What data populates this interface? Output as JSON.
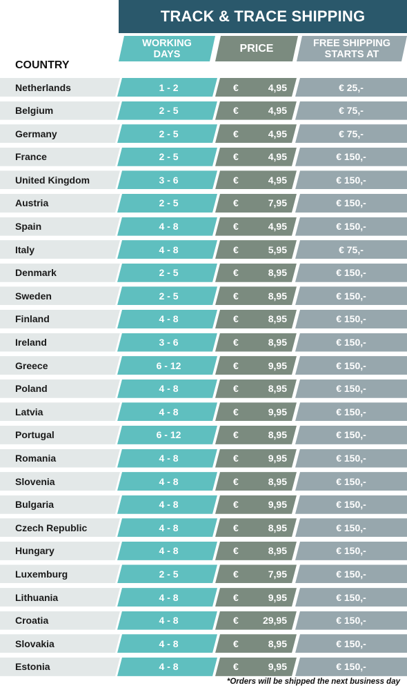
{
  "title": "TRACK & TRACE SHIPPING",
  "headers": {
    "country": "COUNTRY",
    "working_days": "WORKING DAYS",
    "price": "PRICE",
    "free_shipping": "FREE SHIPPING STARTS AT"
  },
  "currency_symbol": "€",
  "colors": {
    "title_bar": "#2a586b",
    "working_days": "#5fbfbf",
    "price": "#7b8b7f",
    "free_shipping": "#97a7ad",
    "country_cell": "#e3e8e8"
  },
  "rows": [
    {
      "country": "Netherlands",
      "days": "1 - 2",
      "price": "4,95",
      "free": "€ 25,-"
    },
    {
      "country": "Belgium",
      "days": "2 - 5",
      "price": "4,95",
      "free": "€ 75,-"
    },
    {
      "country": "Germany",
      "days": "2 - 5",
      "price": "4,95",
      "free": "€ 75,-"
    },
    {
      "country": "France",
      "days": "2 - 5",
      "price": "4,95",
      "free": "€ 150,-"
    },
    {
      "country": "United Kingdom",
      "days": "3 - 6",
      "price": "4,95",
      "free": "€ 150,-"
    },
    {
      "country": "Austria",
      "days": "2 - 5",
      "price": "7,95",
      "free": "€ 150,-"
    },
    {
      "country": "Spain",
      "days": "4 - 8",
      "price": "4,95",
      "free": "€ 150,-"
    },
    {
      "country": "Italy",
      "days": "4 - 8",
      "price": "5,95",
      "free": "€ 75,-"
    },
    {
      "country": "Denmark",
      "days": "2 - 5",
      "price": "8,95",
      "free": "€ 150,-"
    },
    {
      "country": "Sweden",
      "days": "2 - 5",
      "price": "8,95",
      "free": "€ 150,-"
    },
    {
      "country": "Finland",
      "days": "4 - 8",
      "price": "8,95",
      "free": "€ 150,-"
    },
    {
      "country": "Ireland",
      "days": "3 - 6",
      "price": "8,95",
      "free": "€ 150,-"
    },
    {
      "country": "Greece",
      "days": "6 - 12",
      "price": "9,95",
      "free": "€ 150,-"
    },
    {
      "country": "Poland",
      "days": "4 - 8",
      "price": "8,95",
      "free": "€ 150,-"
    },
    {
      "country": "Latvia",
      "days": "4 - 8",
      "price": "9,95",
      "free": "€ 150,-"
    },
    {
      "country": "Portugal",
      "days": "6 - 12",
      "price": "8,95",
      "free": "€ 150,-"
    },
    {
      "country": "Romania",
      "days": "4 - 8",
      "price": "9,95",
      "free": "€ 150,-"
    },
    {
      "country": "Slovenia",
      "days": "4 - 8",
      "price": "8,95",
      "free": "€ 150,-"
    },
    {
      "country": "Bulgaria",
      "days": "4 - 8",
      "price": "9,95",
      "free": "€ 150,-"
    },
    {
      "country": "Czech Republic",
      "days": "4 - 8",
      "price": "8,95",
      "free": "€ 150,-"
    },
    {
      "country": "Hungary",
      "days": "4 - 8",
      "price": "8,95",
      "free": "€ 150,-"
    },
    {
      "country": "Luxemburg",
      "days": "2 - 5",
      "price": "7,95",
      "free": "€ 150,-"
    },
    {
      "country": "Lithuania",
      "days": "4 - 8",
      "price": "9,95",
      "free": "€ 150,-"
    },
    {
      "country": "Croatia",
      "days": "4 - 8",
      "price": "29,95",
      "free": "€ 150,-"
    },
    {
      "country": "Slovakia",
      "days": "4 - 8",
      "price": "8,95",
      "free": "€ 150,-"
    },
    {
      "country": "Estonia",
      "days": "4 - 8",
      "price": "9,95",
      "free": "€ 150,-"
    }
  ],
  "footnote": "*Orders will be shipped the next business day"
}
